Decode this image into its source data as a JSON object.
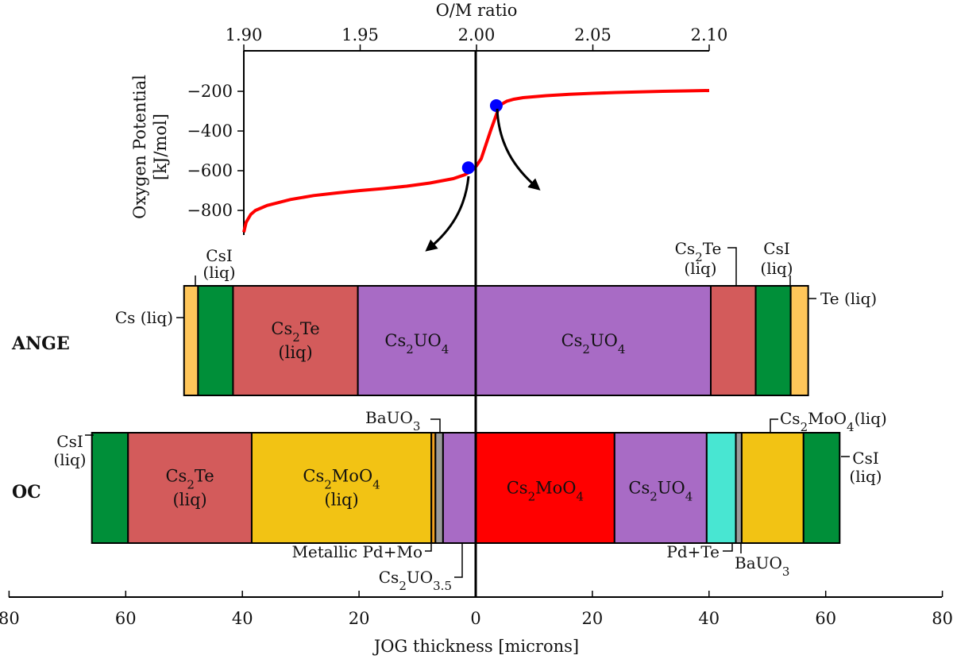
{
  "chart_data": [
    {
      "type": "line",
      "xlabel": "O/M ratio",
      "ylabel": "Oxygen Potential",
      "ylabel_unit": "[kJ/mol]",
      "xlim": [
        1.9,
        2.1
      ],
      "ylim": [
        -930,
        -100
      ],
      "xticks": [
        1.9,
        1.95,
        2.0,
        2.05,
        2.1
      ],
      "xtick_labels": [
        "1.90",
        "1.95",
        "2.00",
        "2.05",
        "2.10"
      ],
      "yticks": [
        -800,
        -600,
        -400,
        -200
      ],
      "ytick_labels": [
        "−800",
        "−600",
        "−400",
        "−200"
      ],
      "line_color": "#ff0000",
      "marker_color": "#0000ff",
      "x": [
        1.9,
        1.901,
        1.903,
        1.905,
        1.91,
        1.92,
        1.93,
        1.94,
        1.95,
        1.96,
        1.97,
        1.98,
        1.99,
        1.995,
        1.998,
        2.0,
        2.002,
        2.006,
        2.01,
        2.013,
        2.016,
        2.02,
        2.03,
        2.04,
        2.05,
        2.06,
        2.07,
        2.08,
        2.09,
        2.1
      ],
      "y": [
        -910,
        -860,
        -820,
        -800,
        -775,
        -745,
        -725,
        -712,
        -700,
        -690,
        -678,
        -662,
        -640,
        -620,
        -600,
        -575,
        -540,
        -400,
        -270,
        -250,
        -240,
        -232,
        -222,
        -215,
        -210,
        -206,
        -203,
        -200,
        -198,
        -196
      ],
      "markers": [
        {
          "x": 1.9965,
          "y": -585
        },
        {
          "x": 2.0085,
          "y": -272
        }
      ]
    },
    {
      "type": "bar",
      "orientation": "horizontal-stacked",
      "xlabel": "JOG thickness [microns]",
      "xlim": [
        -80,
        80
      ],
      "xticks": [
        -80,
        -60,
        -40,
        -20,
        0,
        20,
        40,
        60,
        80
      ],
      "xtick_labels": [
        "80",
        "60",
        "40",
        "20",
        "0",
        "20",
        "40",
        "60",
        "80"
      ],
      "series": [
        {
          "name": "ANGE",
          "segments": [
            {
              "from": -50,
              "to": -47.6,
              "color": "#ffc65a",
              "label": ""
            },
            {
              "from": -47.6,
              "to": -41.6,
              "color": "#008f39",
              "label": ""
            },
            {
              "from": -41.6,
              "to": -20.2,
              "color": "#d35b5b",
              "label": "Cs2Te\n(liq)"
            },
            {
              "from": -20.2,
              "to": 0,
              "color": "#a86bc5",
              "label": "Cs2UO4"
            },
            {
              "from": 0,
              "to": 40.3,
              "color": "#a86bc5",
              "label": "Cs2UO4"
            },
            {
              "from": 40.3,
              "to": 48,
              "color": "#d35b5b",
              "label": ""
            },
            {
              "from": 48,
              "to": 54,
              "color": "#008f39",
              "label": ""
            },
            {
              "from": 54,
              "to": 57,
              "color": "#ffc65a",
              "label": ""
            }
          ]
        },
        {
          "name": "OC",
          "segments": [
            {
              "from": -65.8,
              "to": -59.6,
              "color": "#008f39",
              "label": ""
            },
            {
              "from": -59.6,
              "to": -38.4,
              "color": "#d35b5b",
              "label": "Cs2Te\n(liq)"
            },
            {
              "from": -38.4,
              "to": -7.6,
              "color": "#f2c314",
              "label": "Cs2MoO4\n(liq)"
            },
            {
              "from": -7.6,
              "to": -6.9,
              "color": "#f0a020",
              "label": ""
            },
            {
              "from": -6.9,
              "to": -5.6,
              "color": "#9a9a9a",
              "label": ""
            },
            {
              "from": -5.6,
              "to": 0,
              "color": "#a86bc5",
              "label": ""
            },
            {
              "from": 0,
              "to": 23.8,
              "color": "#ff0000",
              "label": "Cs2MoO4"
            },
            {
              "from": 23.8,
              "to": 39.6,
              "color": "#a86bc5",
              "label": "Cs2UO4"
            },
            {
              "from": 39.6,
              "to": 44.6,
              "color": "#48e6d2",
              "label": ""
            },
            {
              "from": 44.6,
              "to": 45.6,
              "color": "#9a9a9a",
              "label": ""
            },
            {
              "from": 45.6,
              "to": 56.2,
              "color": "#f2c314",
              "label": ""
            },
            {
              "from": 56.2,
              "to": 62.4,
              "color": "#008f39",
              "label": ""
            }
          ]
        }
      ],
      "annotations": {
        "ange_left_csi": "CsI\n(liq)",
        "ange_left_cs": "Cs (liq)",
        "ange_right_cs2te": "Cs2Te\n(liq)",
        "ange_right_csi": "CsI\n(liq)",
        "ange_right_te": "Te (liq)",
        "oc_left_csi": "CsI\n(liq)",
        "oc_bauo3_left": "BaUO3",
        "oc_metallic": "Metallic Pd+Mo",
        "oc_cs2uo35": "Cs2UO3.5",
        "oc_cs2moo4_right": "Cs2MoO4(liq)",
        "oc_right_csi": "CsI\n(liq)",
        "oc_pdte": "Pd+Te",
        "oc_bauo3_right": "BaUO3"
      }
    }
  ]
}
